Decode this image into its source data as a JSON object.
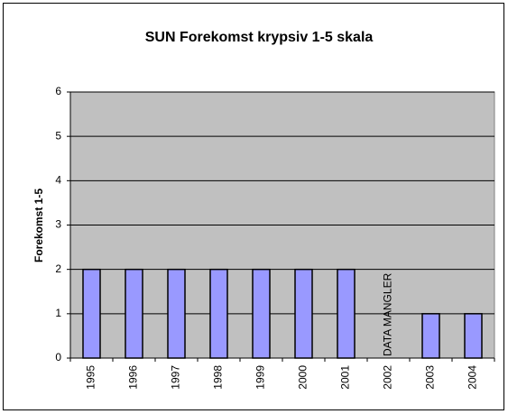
{
  "chart_data": {
    "type": "bar",
    "title": "SUN Forekomst krypsiv 1-5 skala",
    "y_label": "Forekomst 1-5",
    "categories": [
      "1995",
      "1996",
      "1997",
      "1998",
      "1999",
      "2000",
      "2001",
      "2002",
      "2003",
      "2004"
    ],
    "values": [
      2,
      2,
      2,
      2,
      2,
      2,
      2,
      null,
      1,
      1
    ],
    "annotation": "DATA MANGLER",
    "color": "#9999ff",
    "plot_background": "#c0c0c0",
    "ylim": [
      0,
      6
    ],
    "yticks": [
      0,
      1,
      2,
      3,
      4,
      5,
      6
    ],
    "grid": true
  }
}
